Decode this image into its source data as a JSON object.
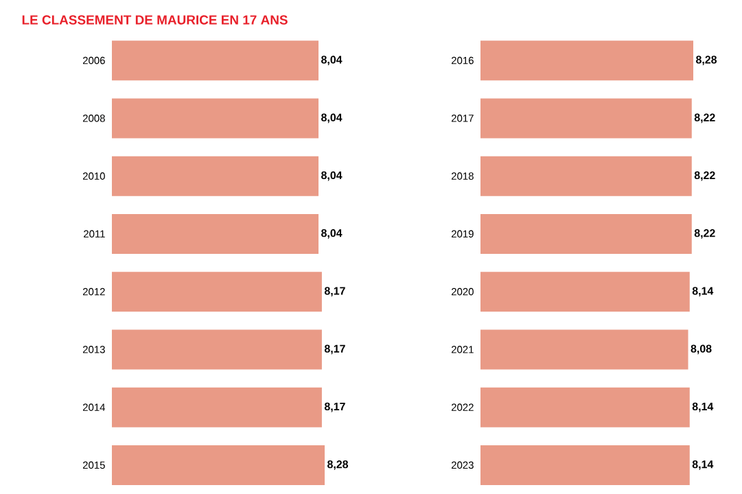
{
  "chart_data": [
    {
      "type": "bar",
      "orientation": "horizontal",
      "title": "LE CLASSEMENT DE MAURICE EN 17 ANS",
      "tick_labels": "y",
      "color": "#e99a86",
      "categories": [
        "2006",
        "2008",
        "2010",
        "2011",
        "2012",
        "2013",
        "2014",
        "2015"
      ],
      "values": [
        8.04,
        8.04,
        8.04,
        8.04,
        8.17,
        8.17,
        8.17,
        8.28
      ],
      "value_labels": [
        "8,04",
        "8,04",
        "8,04",
        "8,04",
        "8,17",
        "8,17",
        "8,17",
        "8,28"
      ]
    },
    {
      "type": "bar",
      "orientation": "horizontal",
      "tick_labels": "y",
      "color": "#e99a86",
      "categories": [
        "2016",
        "2017",
        "2018",
        "2019",
        "2020",
        "2021",
        "2022",
        "2023"
      ],
      "values": [
        8.28,
        8.22,
        8.22,
        8.22,
        8.14,
        8.08,
        8.14,
        8.14
      ],
      "value_labels": [
        "8,28",
        "8,22",
        "8,22",
        "8,22",
        "8,14",
        "8,08",
        "8,14",
        "8,14"
      ]
    }
  ]
}
